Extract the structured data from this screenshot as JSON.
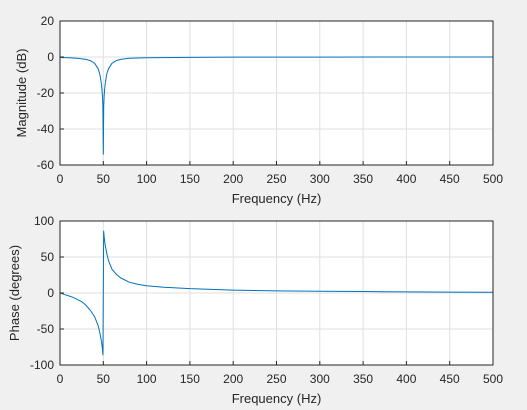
{
  "figure": {
    "background": "#f0f0f0",
    "axes_background": "#ffffff",
    "line_color": "#0072bd",
    "grid_color": "#dfdfdf",
    "axis_color": "#262626"
  },
  "chart_data": [
    {
      "type": "line",
      "name": "magnitude",
      "xlabel": "Frequency (Hz)",
      "ylabel": "Magnitude (dB)",
      "xlim": [
        0,
        500
      ],
      "ylim": [
        -60,
        20
      ],
      "grid": true,
      "xticks": [
        0,
        50,
        100,
        150,
        200,
        250,
        300,
        350,
        400,
        450,
        500
      ],
      "yticks": [
        -60,
        -40,
        -20,
        0,
        20
      ],
      "series": [
        {
          "x": [
            0,
            10,
            20,
            30,
            35,
            40,
            44,
            46,
            48,
            49,
            49.5,
            50,
            50.5,
            51,
            52,
            54,
            56,
            60,
            65,
            70,
            80,
            100,
            150,
            200,
            300,
            400,
            500
          ],
          "y": [
            -0.3,
            -0.4,
            -0.7,
            -1.3,
            -2.0,
            -3.5,
            -6.5,
            -9.5,
            -15.5,
            -21.5,
            -27,
            -54,
            -27,
            -21.5,
            -15.5,
            -9.5,
            -6.5,
            -3.5,
            -2.0,
            -1.3,
            -0.7,
            -0.4,
            -0.2,
            -0.1,
            -0.05,
            -0.03,
            -0.02
          ]
        }
      ]
    },
    {
      "type": "line",
      "name": "phase",
      "xlabel": "Frequency (Hz)",
      "ylabel": "Phase (degrees)",
      "xlim": [
        0,
        500
      ],
      "ylim": [
        -100,
        100
      ],
      "grid": true,
      "xticks": [
        0,
        50,
        100,
        150,
        200,
        250,
        300,
        350,
        400,
        450,
        500
      ],
      "yticks": [
        -100,
        -50,
        0,
        50,
        100
      ],
      "series": [
        {
          "x": [
            0,
            5,
            10,
            15,
            20,
            25,
            30,
            35,
            40,
            44,
            46,
            48,
            49,
            49.6,
            50,
            50.4,
            51,
            52,
            54,
            56,
            60,
            65,
            70,
            80,
            90,
            100,
            120,
            150,
            200,
            250,
            300,
            350,
            400,
            450,
            500
          ],
          "y": [
            0,
            -2,
            -4,
            -6,
            -9,
            -12,
            -17,
            -24,
            -33,
            -45,
            -55,
            -68,
            -78,
            -86,
            0,
            86,
            78,
            68,
            55,
            45,
            33,
            26,
            21,
            15,
            12,
            10,
            8,
            6,
            4,
            3,
            2.5,
            2,
            1.5,
            1.2,
            1
          ]
        }
      ]
    }
  ]
}
